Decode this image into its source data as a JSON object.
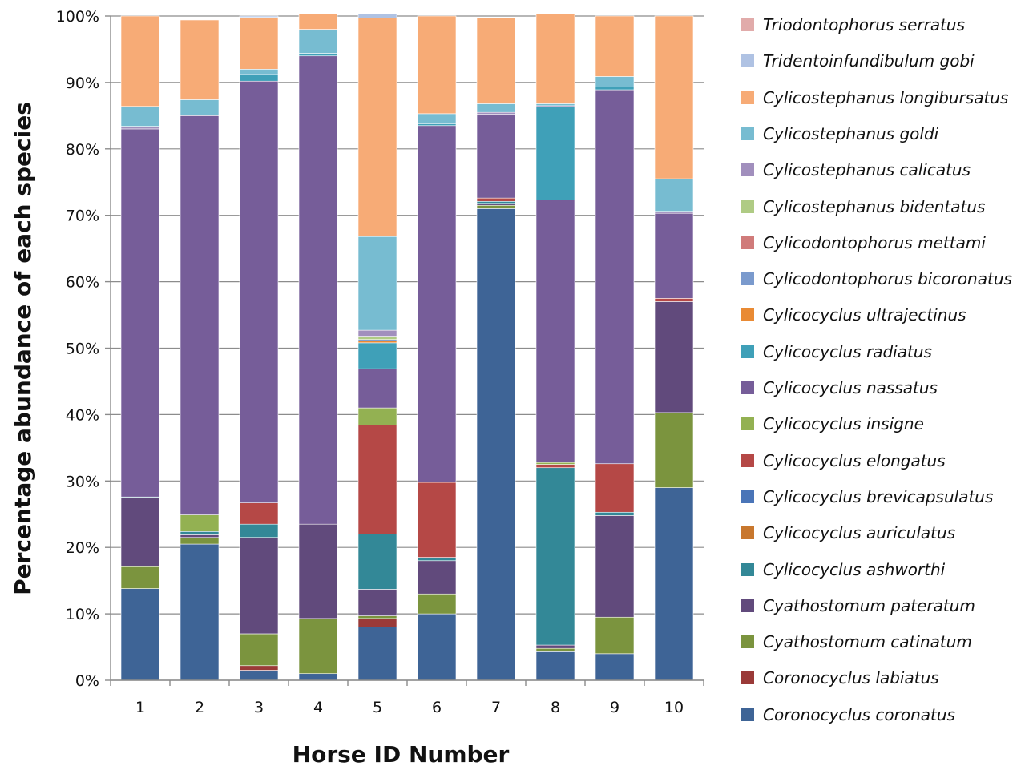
{
  "chart_data": {
    "type": "bar",
    "stacked": true,
    "xlabel": "Horse ID Number",
    "ylabel": "Percentage abundance of each species",
    "categories": [
      "1",
      "2",
      "3",
      "4",
      "5",
      "6",
      "7",
      "8",
      "9",
      "10"
    ],
    "ylim": [
      0,
      100
    ],
    "yticks": [
      0,
      10,
      20,
      30,
      40,
      50,
      60,
      70,
      80,
      90,
      100
    ],
    "ytick_labels": [
      "0%",
      "10%",
      "20%",
      "30%",
      "40%",
      "50%",
      "60%",
      "70%",
      "80%",
      "90%",
      "100%"
    ],
    "grid": true,
    "legend_position": "right",
    "series": [
      {
        "name": "Coronocyclus coronatus",
        "color": "#3E6496",
        "values": [
          13.8,
          20.5,
          1.5,
          1.0,
          8.0,
          10.0,
          71.0,
          4.3,
          4.0,
          29.0
        ]
      },
      {
        "name": "Coronocyclus labiatus",
        "color": "#9A3A38",
        "values": [
          0,
          0,
          0.7,
          0,
          1.3,
          0,
          0,
          0,
          0,
          0
        ]
      },
      {
        "name": "Cyathostomum catinatum",
        "color": "#7B943E",
        "values": [
          3.3,
          1.0,
          4.8,
          8.3,
          0.4,
          3.0,
          0.5,
          0.5,
          5.5,
          11.3
        ]
      },
      {
        "name": "Cyathostomum pateratum",
        "color": "#614A7C",
        "values": [
          10.4,
          0.4,
          14.5,
          14.2,
          4.0,
          5.0,
          0.3,
          0.5,
          15.3,
          16.7
        ]
      },
      {
        "name": "Cylicocyclus ashworthi",
        "color": "#338897",
        "values": [
          0.1,
          0.5,
          2.0,
          0,
          8.3,
          0.5,
          0.3,
          26.7,
          0.5,
          0
        ]
      },
      {
        "name": "Cylicocyclus auriculatus",
        "color": "#C8772E",
        "values": [
          0,
          0,
          0,
          0,
          0,
          0,
          0,
          0,
          0,
          0
        ]
      },
      {
        "name": "Cylicocyclus brevicapsulatus",
        "color": "#4A75B8",
        "values": [
          0,
          0,
          0,
          0,
          0,
          0,
          0,
          0,
          0,
          0
        ]
      },
      {
        "name": "Cylicocyclus elongatus",
        "color": "#B54846",
        "values": [
          0,
          0,
          3.2,
          0,
          16.4,
          11.3,
          0.5,
          0.5,
          7.3,
          0.5
        ]
      },
      {
        "name": "Cylicocyclus insigne",
        "color": "#93B152",
        "values": [
          0,
          2.5,
          0,
          0,
          2.6,
          0,
          0,
          0.3,
          0,
          0
        ]
      },
      {
        "name": "Cylicocyclus nassatus",
        "color": "#765D99",
        "values": [
          55.4,
          60.1,
          63.5,
          70.5,
          5.9,
          53.7,
          12.6,
          39.5,
          56.3,
          12.8
        ]
      },
      {
        "name": "Cylicocyclus radiatus",
        "color": "#3FA0B8",
        "values": [
          0,
          0,
          1.0,
          0.4,
          3.9,
          0.3,
          0,
          14.0,
          0.4,
          0
        ]
      },
      {
        "name": "Cylicocyclus ultrajectinus",
        "color": "#E98A34",
        "values": [
          0,
          0,
          0,
          0,
          0.3,
          0,
          0,
          0,
          0,
          0
        ]
      },
      {
        "name": "Cylicodontophorus bicoronatus",
        "color": "#7A9ACD",
        "values": [
          0,
          0,
          0,
          0,
          0.2,
          0,
          0,
          0,
          0,
          0
        ]
      },
      {
        "name": "Cylicodontophorus mettami",
        "color": "#D07B7A",
        "values": [
          0,
          0,
          0,
          0,
          0,
          0,
          0,
          0,
          0,
          0
        ]
      },
      {
        "name": "Cylicostephanus bidentatus",
        "color": "#AFCB84",
        "values": [
          0,
          0,
          0,
          0,
          0.5,
          0,
          0,
          0,
          0,
          0
        ]
      },
      {
        "name": "Cylicostephanus calicatus",
        "color": "#A18FBD",
        "values": [
          0.4,
          0,
          0,
          0,
          0.9,
          0,
          0.3,
          0.2,
          0,
          0.3
        ]
      },
      {
        "name": "Cylicostephanus goldi",
        "color": "#77BCD1",
        "values": [
          3.0,
          2.4,
          0.8,
          3.6,
          14.1,
          1.5,
          1.3,
          0.3,
          1.6,
          4.9
        ]
      },
      {
        "name": "Cylicostephanus longibursatus",
        "color": "#F7AB76",
        "values": [
          13.6,
          12.0,
          7.8,
          2.3,
          32.9,
          14.7,
          12.9,
          13.5,
          9.1,
          24.5
        ]
      },
      {
        "name": "Tridentoinfundibulum gobi",
        "color": "#AFC2E3",
        "values": [
          0,
          0,
          0.2,
          0,
          0.6,
          0,
          0,
          0,
          0,
          0
        ]
      },
      {
        "name": "Triodontophorus serratus",
        "color": "#E1ABAA",
        "values": [
          0,
          0,
          0,
          0,
          0,
          0,
          0,
          0,
          0,
          0
        ]
      }
    ]
  }
}
